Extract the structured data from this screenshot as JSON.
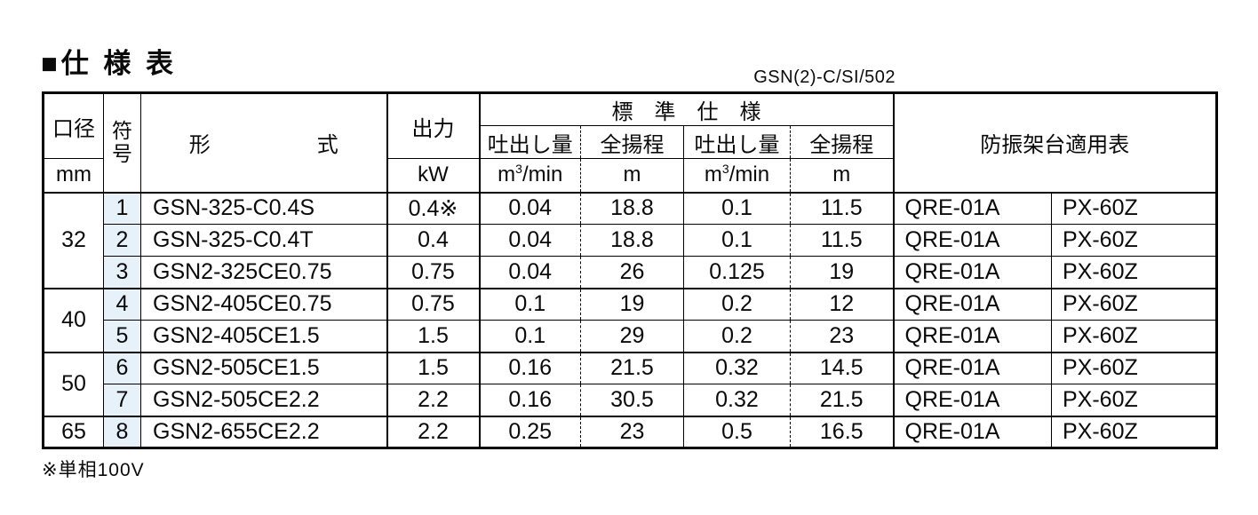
{
  "page": {
    "title": "■仕 様 表",
    "doc_code": "GSN(2)-C/SI/502",
    "footnote": "※単相100V"
  },
  "colors": {
    "symbol_cell_bg": "#e6f1f9",
    "border": "#000000",
    "text": "#0a0a0a"
  },
  "table": {
    "headers": {
      "diameter": "口径",
      "diameter_unit": "mm",
      "symbol": "符号",
      "model": "形　　　　　式",
      "output": "出力",
      "output_unit": "kW",
      "standard_spec": "標　準　仕　様",
      "discharge": "吐出し量",
      "head": "全揚程",
      "flow_unit": {
        "base": "m",
        "sup": "3",
        "suffix": "/min"
      },
      "head_unit": "m",
      "mount_table": "防振架台適用表"
    },
    "groups": [
      {
        "diameter": "32",
        "rows": [
          {
            "no": "1",
            "model": "GSN-325-C0.4S",
            "output_kw": "0.4※",
            "discharge_1": "0.04",
            "head_1": "18.8",
            "discharge_2": "0.1",
            "head_2": "11.5",
            "mount_1": "QRE-01A",
            "mount_2": "PX-60Z"
          },
          {
            "no": "2",
            "model": "GSN-325-C0.4T",
            "output_kw": "0.4",
            "discharge_1": "0.04",
            "head_1": "18.8",
            "discharge_2": "0.1",
            "head_2": "11.5",
            "mount_1": "QRE-01A",
            "mount_2": "PX-60Z"
          },
          {
            "no": "3",
            "model": "GSN2-325CE0.75",
            "output_kw": "0.75",
            "discharge_1": "0.04",
            "head_1": "26",
            "discharge_2": "0.125",
            "head_2": "19",
            "mount_1": "QRE-01A",
            "mount_2": "PX-60Z"
          }
        ]
      },
      {
        "diameter": "40",
        "rows": [
          {
            "no": "4",
            "model": "GSN2-405CE0.75",
            "output_kw": "0.75",
            "discharge_1": "0.1",
            "head_1": "19",
            "discharge_2": "0.2",
            "head_2": "12",
            "mount_1": "QRE-01A",
            "mount_2": "PX-60Z"
          },
          {
            "no": "5",
            "model": "GSN2-405CE1.5",
            "output_kw": "1.5",
            "discharge_1": "0.1",
            "head_1": "29",
            "discharge_2": "0.2",
            "head_2": "23",
            "mount_1": "QRE-01A",
            "mount_2": "PX-60Z"
          }
        ]
      },
      {
        "diameter": "50",
        "rows": [
          {
            "no": "6",
            "model": "GSN2-505CE1.5",
            "output_kw": "1.5",
            "discharge_1": "0.16",
            "head_1": "21.5",
            "discharge_2": "0.32",
            "head_2": "14.5",
            "mount_1": "QRE-01A",
            "mount_2": "PX-60Z"
          },
          {
            "no": "7",
            "model": "GSN2-505CE2.2",
            "output_kw": "2.2",
            "discharge_1": "0.16",
            "head_1": "30.5",
            "discharge_2": "0.32",
            "head_2": "21.5",
            "mount_1": "QRE-01A",
            "mount_2": "PX-60Z"
          }
        ]
      },
      {
        "diameter": "65",
        "rows": [
          {
            "no": "8",
            "model": "GSN2-655CE2.2",
            "output_kw": "2.2",
            "discharge_1": "0.25",
            "head_1": "23",
            "discharge_2": "0.5",
            "head_2": "16.5",
            "mount_1": "QRE-01A",
            "mount_2": "PX-60Z"
          }
        ]
      }
    ]
  }
}
